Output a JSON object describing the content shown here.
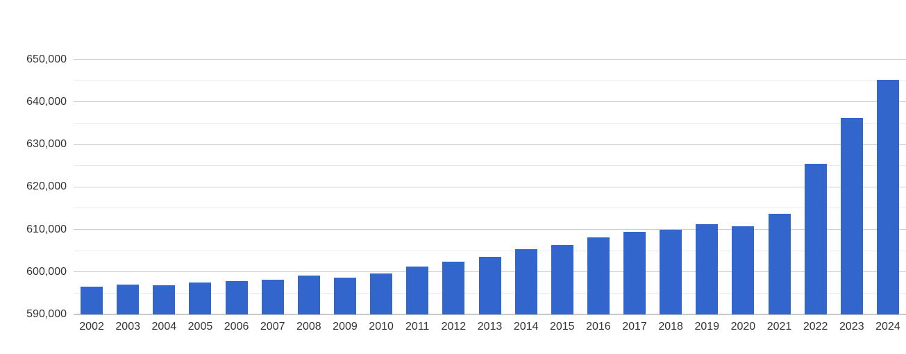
{
  "chart_data": {
    "type": "bar",
    "title": "",
    "xlabel": "",
    "ylabel": "",
    "categories": [
      "2002",
      "2003",
      "2004",
      "2005",
      "2006",
      "2007",
      "2008",
      "2009",
      "2010",
      "2011",
      "2012",
      "2013",
      "2014",
      "2015",
      "2016",
      "2017",
      "2018",
      "2019",
      "2020",
      "2021",
      "2022",
      "2023",
      "2024"
    ],
    "values": [
      596600,
      597100,
      596900,
      597500,
      597900,
      598100,
      599100,
      598700,
      599700,
      601300,
      602400,
      603500,
      605400,
      606400,
      608200,
      609400,
      609900,
      611200,
      610700,
      613700,
      625400,
      636200,
      645200
    ],
    "ylim": [
      590000,
      650000
    ],
    "y_tick_step": 10000,
    "y_minor_step": 5000,
    "y_tick_labels": [
      "590,000",
      "600,000",
      "610,000",
      "620,000",
      "630,000",
      "640,000",
      "650,000"
    ],
    "grid": true,
    "legend": "none",
    "colors": {
      "bar": "#3366cc",
      "major_gridline": "#cccccc",
      "minor_gridline": "#ebebeb",
      "baseline": "#c8c8c8",
      "axis_text": "#333333",
      "background": "#ffffff"
    }
  }
}
